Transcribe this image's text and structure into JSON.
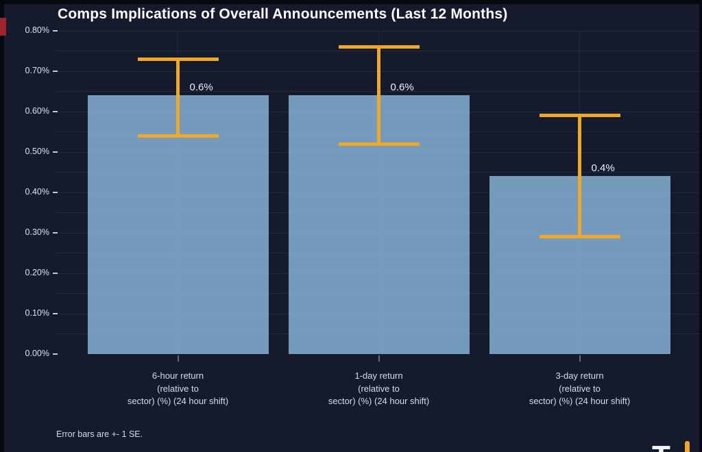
{
  "title": "Comps Implications of Overall Announcements (Last 12 Months)",
  "footnote": "Error bars are +- 1 SE.",
  "logo": {
    "partial_text": "T"
  },
  "colors": {
    "background": "#151b2d",
    "bar_fill": "#7aa2c4",
    "error_bar": "#f0a828",
    "grid": "#232a3d",
    "title_text": "#fdfdfe",
    "axis_text": "#dfe2e9",
    "corner_mark": "#9e2429"
  },
  "chart_data": {
    "type": "bar",
    "title": "Comps Implications of Overall Announcements (Last 12 Months)",
    "categories": [
      "6-hour return (relative to sector) (%) (24 hour shift)",
      "1-day return (relative to sector) (%) (24 hour shift)",
      "3-day return (relative to sector) (%) (24 hour shift)"
    ],
    "category_lines": [
      [
        "6-hour return",
        "(relative to",
        "sector) (%) (24 hour shift)"
      ],
      [
        "1-day return",
        "(relative to",
        "sector) (%) (24 hour shift)"
      ],
      [
        "3-day return",
        "(relative to",
        "sector) (%) (24 hour shift)"
      ]
    ],
    "values": [
      0.64,
      0.64,
      0.44
    ],
    "bar_labels": [
      "0.6%",
      "0.6%",
      "0.4%"
    ],
    "error_high": [
      0.73,
      0.76,
      0.59
    ],
    "error_low": [
      0.54,
      0.52,
      0.29
    ],
    "error_note": "Error bars are +- 1 SE.",
    "xlabel": "",
    "ylabel": "",
    "ylim": [
      0,
      0.8
    ],
    "y_tick_values": [
      0.8,
      0.7,
      0.6,
      0.5,
      0.4,
      0.3,
      0.2,
      0.1,
      0.0
    ],
    "y_tick_labels": [
      "0.80%",
      "0.70%",
      "0.60%",
      "0.50%",
      "0.40%",
      "0.30%",
      "0.20%",
      "0.10%",
      "0.00%"
    ],
    "grid": "horizontal lines every 0.05%, faint vertical line at each category center",
    "legend": false
  }
}
